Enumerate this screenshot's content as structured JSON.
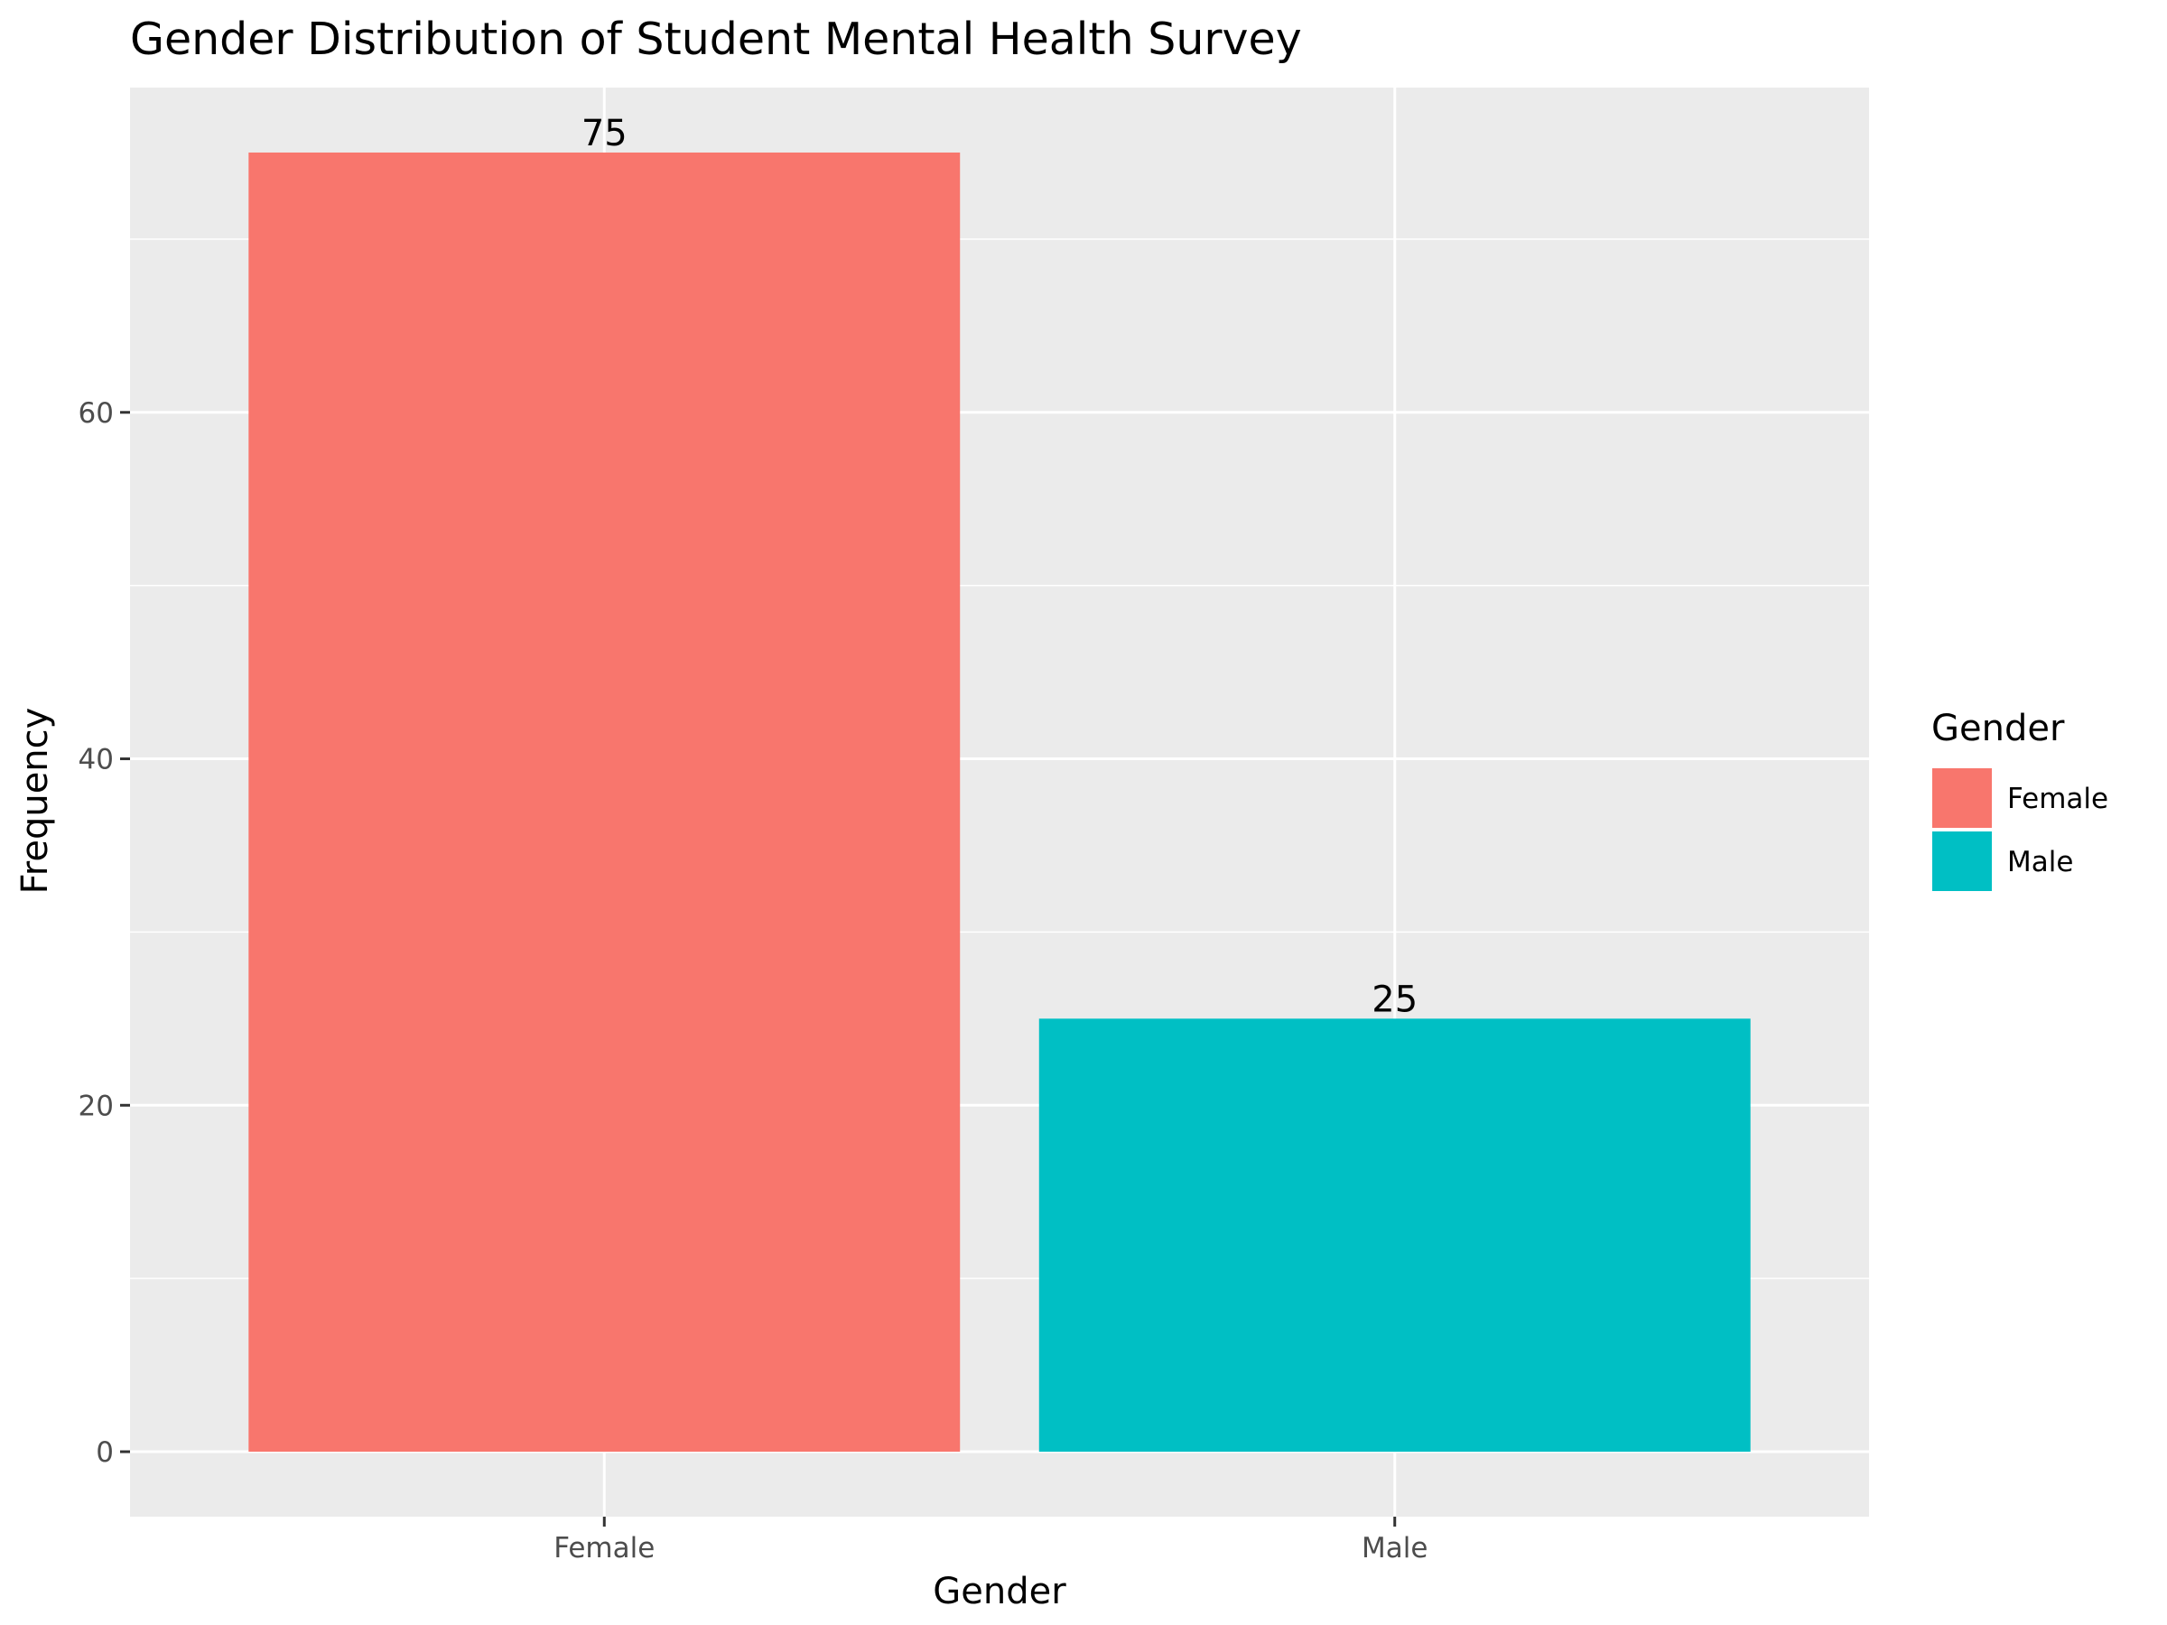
{
  "chart_data": {
    "type": "bar",
    "title": "Gender Distribution of Student Mental Health Survey",
    "xlabel": "Gender",
    "ylabel": "Frequency",
    "categories": [
      "Female",
      "Male"
    ],
    "values": [
      75,
      25
    ],
    "data_labels": [
      "75",
      "25"
    ],
    "ylim": [
      -3.75,
      78.75
    ],
    "yticks": [
      0,
      20,
      40,
      60
    ],
    "ytick_labels": [
      "0",
      "20",
      "40",
      "60"
    ],
    "minor_yticks": [
      10,
      30,
      50,
      70
    ],
    "grid": true,
    "legend": {
      "title": "Gender",
      "placement": "right",
      "entries": [
        "Female",
        "Male"
      ]
    },
    "colors": {
      "Female": "#F8766D",
      "Male": "#00BFC4",
      "panel": "#EBEBEB",
      "grid": "#FFFFFF"
    }
  }
}
